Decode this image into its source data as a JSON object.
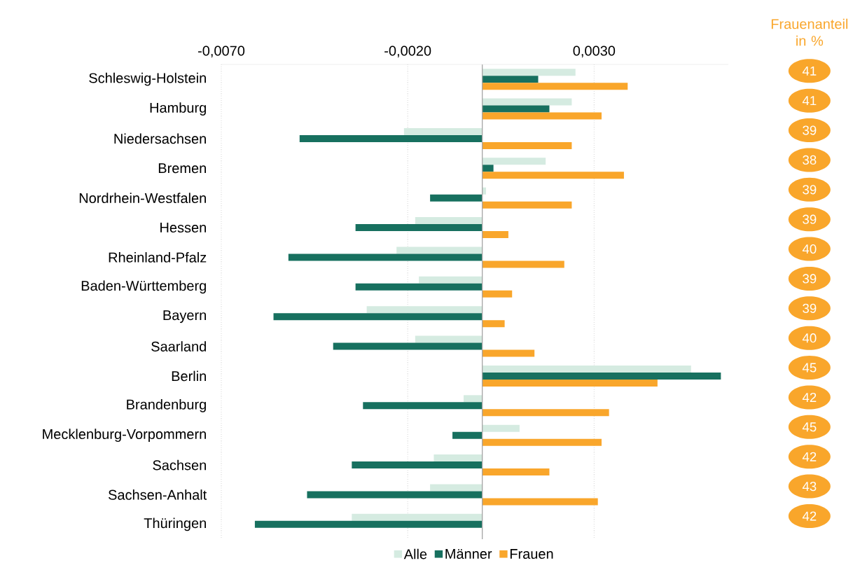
{
  "chart_data": {
    "type": "bar",
    "orientation": "horizontal",
    "categories": [
      "Schleswig-Holstein",
      "Hamburg",
      "Niedersachsen",
      "Bremen",
      "Nordrhein-Westfalen",
      "Hessen",
      "Rheinland-Pfalz",
      "Baden-Württemberg",
      "Bayern",
      "Saarland",
      "Berlin",
      "Brandenburg",
      "Mecklenburg-Vorpommern",
      "Sachsen",
      "Sachsen-Anhalt",
      "Thüringen"
    ],
    "series": [
      {
        "name": "Alle",
        "color": "#d5ebe1",
        "values": [
          0.0025,
          0.0024,
          -0.0021,
          0.0017,
          0.0001,
          -0.0018,
          -0.0023,
          -0.0017,
          -0.0031,
          -0.0018,
          0.0056,
          -0.0005,
          0.001,
          -0.0013,
          -0.0014,
          -0.0035
        ]
      },
      {
        "name": "Männer",
        "color": "#17705f",
        "values": [
          0.0015,
          0.0018,
          -0.0049,
          0.0003,
          -0.0014,
          -0.0034,
          -0.0052,
          -0.0034,
          -0.0056,
          -0.004,
          0.0064,
          -0.0032,
          -0.0008,
          -0.0035,
          -0.0047,
          -0.0061
        ]
      },
      {
        "name": "Frauen",
        "color": "#f9a62b",
        "values": [
          0.0039,
          0.0032,
          0.0024,
          0.0038,
          0.0024,
          0.0007,
          0.0022,
          0.0008,
          0.0006,
          0.0014,
          0.0047,
          0.0034,
          0.0032,
          0.0018,
          0.0031,
          0.0
        ]
      }
    ],
    "xlim": [
      -0.007,
      0.0066
    ],
    "xticks": [
      {
        "value": -0.007,
        "label": "-0,0070"
      },
      {
        "value": -0.002,
        "label": "-0,0020"
      },
      {
        "value": 0.003,
        "label": "0,0030"
      }
    ],
    "grid": "x",
    "legend": "bottom",
    "annotations": [
      "Frauenanteil in %",
      "41",
      "41",
      "39",
      "38",
      "39",
      "39",
      "40",
      "39",
      "39",
      "40",
      "45",
      "42",
      "45",
      "42",
      "43",
      "42"
    ]
  }
}
